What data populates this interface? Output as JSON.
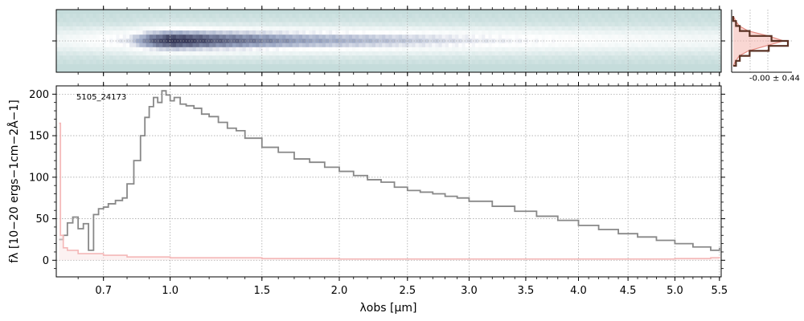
{
  "chart_data": [
    {
      "type": "heatmap",
      "panel": "2d-spectrum",
      "colormap": [
        "#c5dcdb",
        "#e6f0f0",
        "#ffffff",
        "#9aa6c3",
        "#343656"
      ],
      "profile_rows": [
        0.0,
        0.03,
        0.08,
        0.2,
        0.45,
        0.7,
        0.92,
        1.0,
        0.88,
        0.62,
        0.38,
        0.18,
        0.07,
        0.02,
        0.0
      ],
      "trace_x": [
        0.55,
        0.7,
        0.8,
        0.9,
        1.0,
        1.1,
        1.25,
        1.5,
        1.75,
        2.0,
        2.5,
        3.0,
        3.5,
        4.0,
        4.5,
        5.0,
        5.5
      ],
      "trace_strength": [
        0.15,
        0.3,
        0.4,
        0.8,
        1.0,
        0.95,
        0.85,
        0.75,
        0.65,
        0.6,
        0.5,
        0.4,
        0.33,
        0.27,
        0.22,
        0.18,
        0.15
      ]
    },
    {
      "type": "line",
      "panel": "cross-dispersion-profile",
      "annotation": "-0.00 ± 0.44",
      "profile": [
        0.0,
        0.05,
        0.12,
        0.3,
        0.7,
        1.0,
        0.65,
        0.3,
        0.12,
        0.05,
        0.0
      ],
      "colors": {
        "data": "#5a3224",
        "model": "#f4b7ae"
      }
    },
    {
      "type": "line",
      "panel": "1d-spectrum",
      "title": "",
      "annotation": "5105_24173",
      "xlabel": "λobs [μm]",
      "ylabel": "fλ [10−20 ergs−1cm−2Å−1]",
      "x_scale": "power-law (x^0.5)",
      "xlim": [
        0.52,
        5.52
      ],
      "ylim": [
        -20,
        210
      ],
      "x_ticks": [
        0.7,
        1.0,
        1.5,
        2.0,
        2.5,
        3.0,
        3.5,
        4.0,
        4.5,
        5.0,
        5.5
      ],
      "x_tick_labels": [
        "0.7",
        "1.0",
        "1.5",
        "2.0",
        "2.5",
        "3.0",
        "3.5",
        "4.0",
        "4.5",
        "5.0",
        "5.5"
      ],
      "y_ticks": [
        0,
        50,
        100,
        150,
        200
      ],
      "y_tick_labels": [
        "0",
        "50",
        "100",
        "150",
        "200"
      ],
      "grid": true,
      "series": [
        {
          "color": "#888888",
          "x": [
            0.53,
            0.545,
            0.56,
            0.58,
            0.6,
            0.62,
            0.64,
            0.66,
            0.68,
            0.7,
            0.72,
            0.75,
            0.78,
            0.8,
            0.83,
            0.86,
            0.88,
            0.9,
            0.92,
            0.94,
            0.96,
            0.98,
            1.0,
            1.02,
            1.05,
            1.08,
            1.12,
            1.16,
            1.2,
            1.25,
            1.3,
            1.35,
            1.4,
            1.5,
            1.6,
            1.7,
            1.8,
            1.9,
            2.0,
            2.1,
            2.2,
            2.3,
            2.4,
            2.5,
            2.6,
            2.7,
            2.8,
            2.9,
            3.0,
            3.2,
            3.4,
            3.6,
            3.8,
            4.0,
            4.2,
            4.4,
            4.6,
            4.8,
            5.0,
            5.2,
            5.4,
            5.5
          ],
          "y": [
            25,
            30,
            45,
            52,
            38,
            44,
            12,
            55,
            62,
            64,
            68,
            72,
            75,
            92,
            120,
            150,
            172,
            185,
            196,
            190,
            204,
            199,
            192,
            196,
            188,
            186,
            183,
            176,
            173,
            166,
            159,
            156,
            147,
            136,
            130,
            122,
            118,
            112,
            107,
            102,
            97,
            94,
            88,
            84,
            82,
            80,
            77,
            75,
            71,
            65,
            59,
            53,
            48,
            42,
            37,
            32,
            28,
            24,
            20,
            16,
            12,
            15
          ]
        },
        {
          "color": "#f4b7b7",
          "x": [
            0.53,
            0.535,
            0.545,
            0.56,
            0.6,
            0.7,
            0.8,
            1.0,
            1.5,
            2.0,
            3.0,
            4.0,
            5.0,
            5.4,
            5.5
          ],
          "y": [
            165,
            30,
            15,
            12,
            8,
            6,
            4,
            3,
            2,
            1.5,
            1.5,
            1.5,
            2,
            3,
            4
          ]
        }
      ]
    }
  ]
}
